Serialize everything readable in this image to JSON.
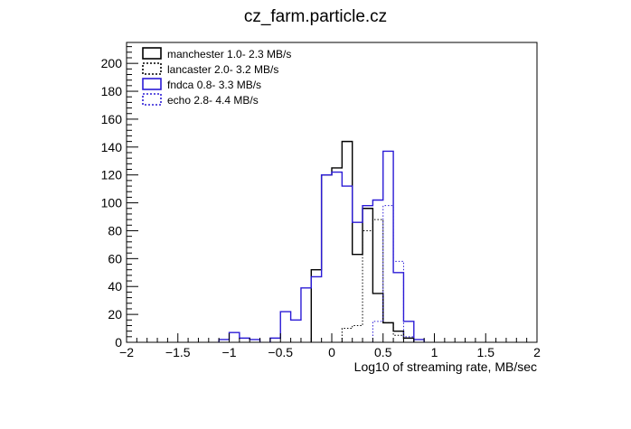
{
  "chart_data": {
    "type": "histogram",
    "title": "cz_farm.particle.cz",
    "xlabel": "Log10  of streaming rate, MB/sec",
    "ylabel": "",
    "xlim": [
      -2,
      2
    ],
    "ylim": [
      0,
      215
    ],
    "bin_width": 0.1,
    "x_ticks": [
      -2,
      -1.5,
      -1,
      -0.5,
      0,
      0.5,
      1,
      1.5,
      2
    ],
    "x_tick_labels": [
      "−2",
      "−1.5",
      "−1",
      "−0.5",
      "0",
      "0.5",
      "1",
      "1.5",
      "2"
    ],
    "y_ticks": [
      0,
      20,
      40,
      60,
      80,
      100,
      120,
      140,
      160,
      180,
      200
    ],
    "y_tick_labels": [
      "0",
      "20",
      "40",
      "60",
      "80",
      "100",
      "120",
      "140",
      "160",
      "180",
      "200"
    ],
    "legend_position": "top-left",
    "series": [
      {
        "name": "manchester  1.0- 2.3 MB/s",
        "color": "#000000",
        "line_style": "solid",
        "bins": [
          {
            "x0": -0.2,
            "x1": -0.1,
            "y": 52
          },
          {
            "x0": -0.1,
            "x1": 0.0,
            "y": 120
          },
          {
            "x0": 0.0,
            "x1": 0.1,
            "y": 125
          },
          {
            "x0": 0.1,
            "x1": 0.2,
            "y": 144
          },
          {
            "x0": 0.2,
            "x1": 0.3,
            "y": 63
          },
          {
            "x0": 0.3,
            "x1": 0.4,
            "y": 96
          },
          {
            "x0": 0.4,
            "x1": 0.5,
            "y": 35
          },
          {
            "x0": 0.5,
            "x1": 0.6,
            "y": 14
          },
          {
            "x0": 0.6,
            "x1": 0.7,
            "y": 8
          },
          {
            "x0": 0.7,
            "x1": 0.8,
            "y": 3
          }
        ]
      },
      {
        "name": "lancaster  2.0- 3.2 MB/s",
        "color": "#000000",
        "line_style": "dotted",
        "bins": [
          {
            "x0": 0.1,
            "x1": 0.2,
            "y": 10
          },
          {
            "x0": 0.2,
            "x1": 0.3,
            "y": 12
          },
          {
            "x0": 0.3,
            "x1": 0.4,
            "y": 80
          },
          {
            "x0": 0.4,
            "x1": 0.5,
            "y": 88
          },
          {
            "x0": 0.5,
            "x1": 0.6,
            "y": 14
          },
          {
            "x0": 0.6,
            "x1": 0.7,
            "y": 5
          }
        ]
      },
      {
        "name": "fndca  0.8- 3.3 MB/s",
        "color": "#2b1bd6",
        "line_style": "solid",
        "bins": [
          {
            "x0": -1.1,
            "x1": -1.0,
            "y": 2
          },
          {
            "x0": -1.0,
            "x1": -0.9,
            "y": 7
          },
          {
            "x0": -0.9,
            "x1": -0.8,
            "y": 3
          },
          {
            "x0": -0.8,
            "x1": -0.7,
            "y": 2
          },
          {
            "x0": -0.6,
            "x1": -0.5,
            "y": 3
          },
          {
            "x0": -0.5,
            "x1": -0.4,
            "y": 22
          },
          {
            "x0": -0.4,
            "x1": -0.3,
            "y": 16
          },
          {
            "x0": -0.3,
            "x1": -0.2,
            "y": 39
          },
          {
            "x0": -0.2,
            "x1": -0.1,
            "y": 47
          },
          {
            "x0": -0.1,
            "x1": 0.0,
            "y": 120
          },
          {
            "x0": 0.0,
            "x1": 0.1,
            "y": 122
          },
          {
            "x0": 0.1,
            "x1": 0.2,
            "y": 112
          },
          {
            "x0": 0.2,
            "x1": 0.3,
            "y": 86
          },
          {
            "x0": 0.3,
            "x1": 0.4,
            "y": 98
          },
          {
            "x0": 0.4,
            "x1": 0.5,
            "y": 102
          },
          {
            "x0": 0.5,
            "x1": 0.6,
            "y": 137
          },
          {
            "x0": 0.6,
            "x1": 0.7,
            "y": 50
          },
          {
            "x0": 0.7,
            "x1": 0.8,
            "y": 15
          },
          {
            "x0": 0.8,
            "x1": 0.9,
            "y": 2
          }
        ]
      },
      {
        "name": "echo  2.8- 4.4 MB/s",
        "color": "#2b1bd6",
        "line_style": "dotted",
        "bins": [
          {
            "x0": 0.4,
            "x1": 0.5,
            "y": 15
          },
          {
            "x0": 0.5,
            "x1": 0.6,
            "y": 98
          },
          {
            "x0": 0.6,
            "x1": 0.7,
            "y": 58
          },
          {
            "x0": 0.7,
            "x1": 0.8,
            "y": 4
          }
        ]
      }
    ]
  }
}
